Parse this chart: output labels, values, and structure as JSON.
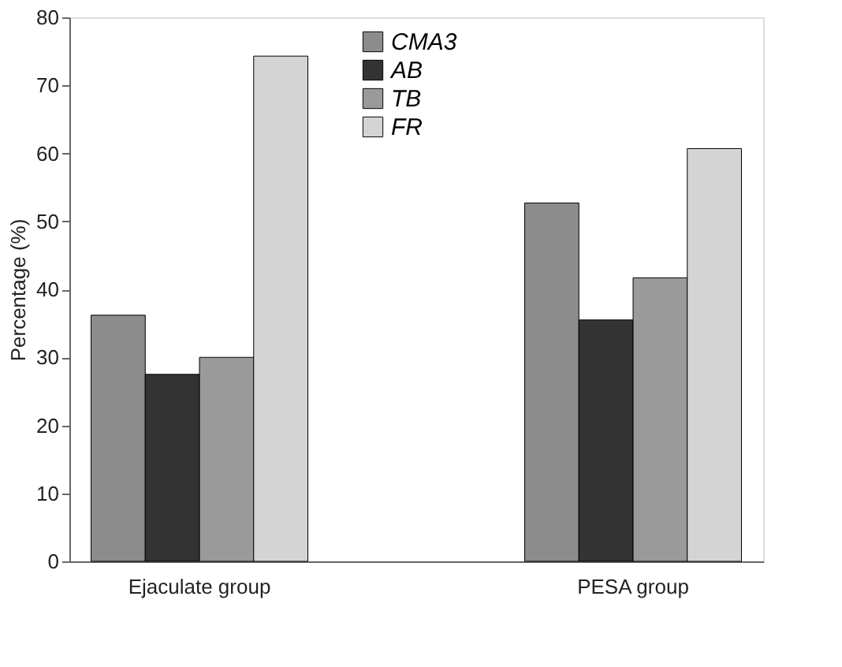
{
  "chart_data": {
    "type": "bar",
    "ylabel": "Percentage (%)",
    "categories": [
      "Ejaculate group",
      "PESA group"
    ],
    "series": [
      {
        "name": "CMA3",
        "color": "#8c8c8c",
        "values": [
          36.2,
          52.7
        ]
      },
      {
        "name": "AB",
        "color": "#333333",
        "values": [
          27.5,
          35.5
        ]
      },
      {
        "name": "TB",
        "color": "#9a9a9a",
        "values": [
          30.0,
          41.7
        ]
      },
      {
        "name": "FR",
        "color": "#d4d4d4",
        "values": [
          74.3,
          60.7
        ]
      }
    ],
    "ylim": [
      0,
      80
    ],
    "yticks": [
      0,
      10,
      20,
      30,
      40,
      50,
      60,
      70,
      80
    ],
    "grid": false,
    "legend": "top"
  }
}
